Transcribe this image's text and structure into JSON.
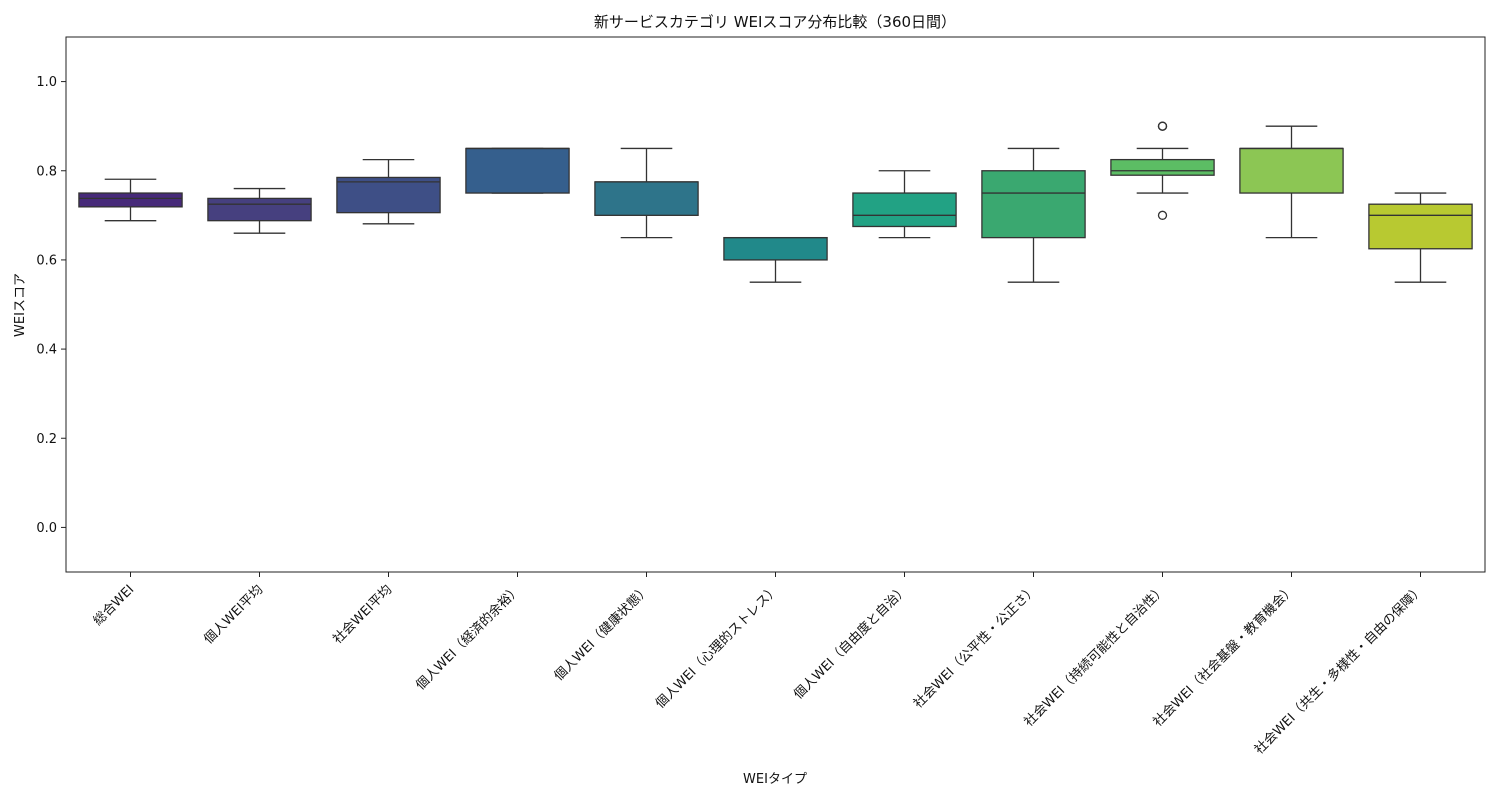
{
  "chart_data": {
    "type": "box",
    "title": "新サービスカテゴリ WEIスコア分布比較（360日間）",
    "xlabel": "WEIタイプ",
    "ylabel": "WEIスコア",
    "ylim": [
      -0.1,
      1.1
    ],
    "yticks": [
      "0.0",
      "0.2",
      "0.4",
      "0.6",
      "0.8",
      "1.0"
    ],
    "grid": false,
    "legend": "none",
    "categories": [
      "総合WEI",
      "個人WEI平均",
      "社会WEI平均",
      "個人WEI（経済的余裕）",
      "個人WEI（健康状態）",
      "個人WEI（心理的ストレス）",
      "個人WEI（自由度と自治）",
      "社会WEI（公平性・公正さ）",
      "社会WEI（持続可能性と自治性）",
      "社会WEI（社会基盤・教育機会）",
      "社会WEI（共生・多様性・自由の保障）"
    ],
    "boxes": [
      {
        "whisker_low": 0.688,
        "q1": 0.719,
        "median": 0.738,
        "q3": 0.75,
        "whisker_high": 0.781,
        "outliers": [],
        "color": "#472a7a"
      },
      {
        "whisker_low": 0.66,
        "q1": 0.688,
        "median": 0.725,
        "q3": 0.738,
        "whisker_high": 0.76,
        "outliers": [],
        "color": "#46407f"
      },
      {
        "whisker_low": 0.681,
        "q1": 0.706,
        "median": 0.775,
        "q3": 0.785,
        "whisker_high": 0.825,
        "outliers": [],
        "color": "#3e4f86"
      },
      {
        "whisker_low": 0.75,
        "q1": 0.75,
        "median": 0.85,
        "q3": 0.85,
        "whisker_high": 0.85,
        "outliers": [],
        "color": "#355f8d"
      },
      {
        "whisker_low": 0.65,
        "q1": 0.7,
        "median": 0.775,
        "q3": 0.775,
        "whisker_high": 0.85,
        "outliers": [],
        "color": "#2e748a"
      },
      {
        "whisker_low": 0.55,
        "q1": 0.6,
        "median": 0.65,
        "q3": 0.65,
        "whisker_high": 0.65,
        "outliers": [],
        "color": "#21898a"
      },
      {
        "whisker_low": 0.65,
        "q1": 0.675,
        "median": 0.7,
        "q3": 0.75,
        "whisker_high": 0.8,
        "outliers": [],
        "color": "#22a284"
      },
      {
        "whisker_low": 0.55,
        "q1": 0.65,
        "median": 0.75,
        "q3": 0.8,
        "whisker_high": 0.85,
        "outliers": [],
        "color": "#3aa870"
      },
      {
        "whisker_low": 0.75,
        "q1": 0.79,
        "median": 0.8,
        "q3": 0.825,
        "whisker_high": 0.85,
        "outliers": [
          0.9,
          0.9,
          0.7
        ],
        "color": "#5cbd64"
      },
      {
        "whisker_low": 0.65,
        "q1": 0.75,
        "median": 0.85,
        "q3": 0.85,
        "whisker_high": 0.9,
        "outliers": [],
        "color": "#8cc654"
      },
      {
        "whisker_low": 0.55,
        "q1": 0.625,
        "median": 0.7,
        "q3": 0.725,
        "whisker_high": 0.75,
        "outliers": [],
        "color": "#b8c931"
      }
    ]
  }
}
